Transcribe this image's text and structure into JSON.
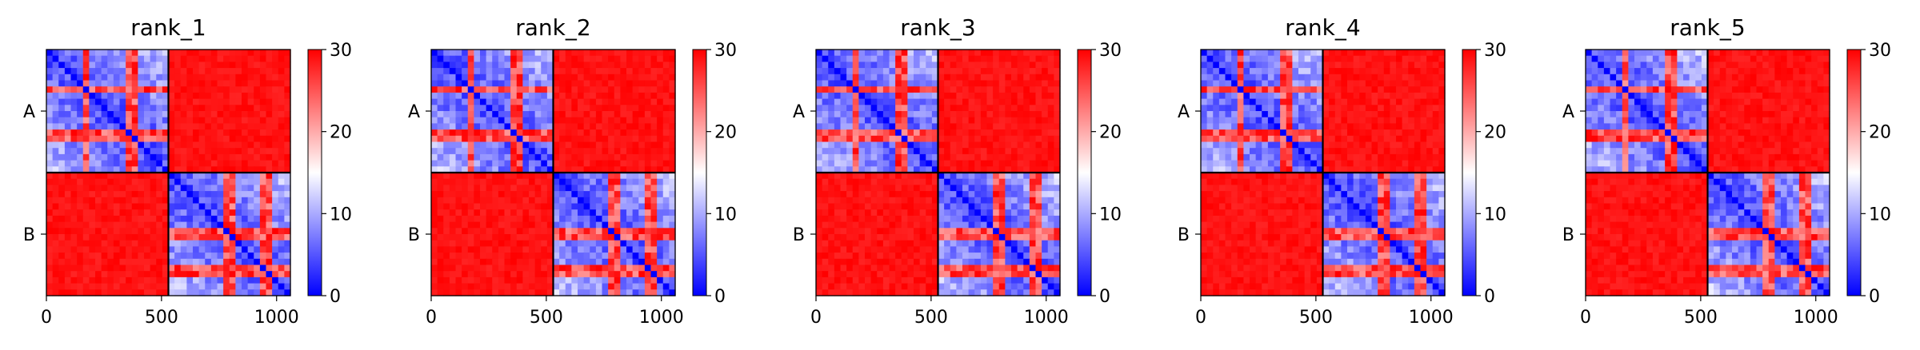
{
  "colors": {
    "low": "#0000ff",
    "mid": "#ffffff",
    "high": "#ff0000",
    "frame": "#000000"
  },
  "chart_data": [
    {
      "type": "heatmap",
      "title": "rank_1",
      "xticks": [
        0,
        500,
        1000
      ],
      "yticks": [
        "A",
        "B"
      ],
      "xlim": [
        0,
        1060
      ],
      "chain_boundary": 530,
      "colorbar": {
        "vmin": 0,
        "vmax": 30,
        "ticks": [
          0,
          10,
          20,
          30
        ],
        "colormap": "bwr"
      },
      "blocks": {
        "A-A": "low-mixed",
        "A-B": "high",
        "B-A": "high",
        "B-B": "low-mixed"
      },
      "grid": false
    },
    {
      "type": "heatmap",
      "title": "rank_2",
      "xticks": [
        0,
        500,
        1000
      ],
      "yticks": [
        "A",
        "B"
      ],
      "xlim": [
        0,
        1060
      ],
      "chain_boundary": 530,
      "colorbar": {
        "vmin": 0,
        "vmax": 30,
        "ticks": [
          0,
          10,
          20,
          30
        ],
        "colormap": "bwr"
      },
      "blocks": {
        "A-A": "low-mixed",
        "A-B": "high",
        "B-A": "high",
        "B-B": "low-mixed"
      },
      "grid": false
    },
    {
      "type": "heatmap",
      "title": "rank_3",
      "xticks": [
        0,
        500,
        1000
      ],
      "yticks": [
        "A",
        "B"
      ],
      "xlim": [
        0,
        1060
      ],
      "chain_boundary": 530,
      "colorbar": {
        "vmin": 0,
        "vmax": 30,
        "ticks": [
          0,
          10,
          20,
          30
        ],
        "colormap": "bwr"
      },
      "blocks": {
        "A-A": "low-mixed",
        "A-B": "high",
        "B-A": "high",
        "B-B": "low-mixed"
      },
      "grid": false
    },
    {
      "type": "heatmap",
      "title": "rank_4",
      "xticks": [
        0,
        500,
        1000
      ],
      "yticks": [
        "A",
        "B"
      ],
      "xlim": [
        0,
        1060
      ],
      "chain_boundary": 530,
      "colorbar": {
        "vmin": 0,
        "vmax": 30,
        "ticks": [
          0,
          10,
          20,
          30
        ],
        "colormap": "bwr"
      },
      "blocks": {
        "A-A": "low-mixed",
        "A-B": "high",
        "B-A": "high",
        "B-B": "low-mixed"
      },
      "grid": false
    },
    {
      "type": "heatmap",
      "title": "rank_5",
      "xticks": [
        0,
        500,
        1000
      ],
      "yticks": [
        "A",
        "B"
      ],
      "xlim": [
        0,
        1060
      ],
      "chain_boundary": 530,
      "colorbar": {
        "vmin": 0,
        "vmax": 30,
        "ticks": [
          0,
          10,
          20,
          30
        ],
        "colormap": "bwr"
      },
      "blocks": {
        "A-A": "low-mixed",
        "A-B": "high",
        "B-A": "high",
        "B-B": "low-mixed"
      },
      "grid": false
    }
  ]
}
